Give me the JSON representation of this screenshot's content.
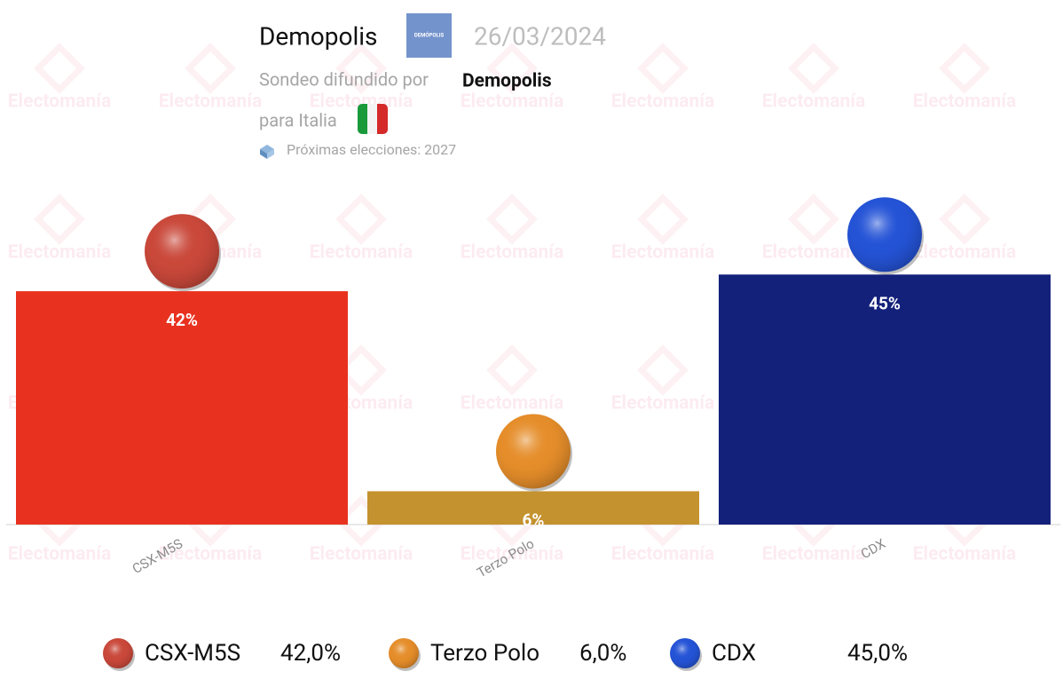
{
  "chart_data": {
    "type": "bar",
    "title": "Demopolis",
    "logo_text": "DEMÓPOLIS",
    "date": "26/03/2024",
    "subtitle": "Sondeo difundido por",
    "source": "Demopolis",
    "region": "para Italia",
    "next_election": "Próximas elecciones: 2027",
    "watermark": "Electomanía",
    "categories": [
      "CSX-M5S",
      "Terzo Polo",
      "CDX"
    ],
    "values": [
      42,
      6,
      45
    ],
    "value_labels": [
      "42%",
      "6%",
      "45%"
    ],
    "legend_value_labels": [
      "42,0%",
      "6,0%",
      "45,0%"
    ],
    "colors": [
      "#e8321f",
      "#c4922e",
      "#14217a"
    ],
    "marker_colors": [
      "#c9483a",
      "#e58d2a",
      "#2453d6"
    ],
    "ylim": [
      0,
      50
    ]
  }
}
